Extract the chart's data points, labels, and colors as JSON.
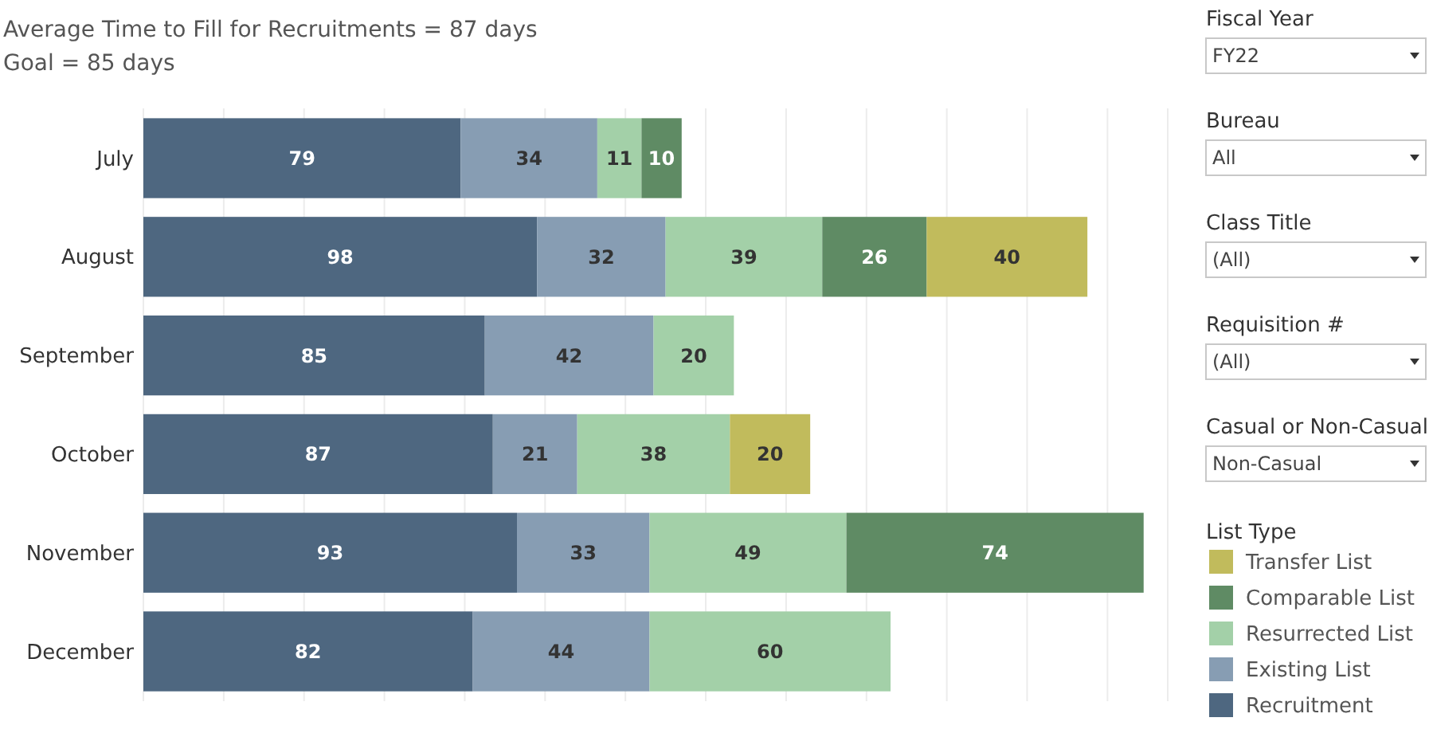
{
  "chart_data": {
    "type": "bar",
    "orientation": "horizontal",
    "stacked": true,
    "title": "Average Time to Fill for Recruitments = 87 days",
    "subtitle": "Goal = 85 days",
    "categories": [
      "July",
      "August",
      "September",
      "October",
      "November",
      "December"
    ],
    "series": [
      {
        "name": "Recruitment",
        "color": "#4e6780",
        "values": [
          79,
          98,
          85,
          87,
          93,
          82
        ]
      },
      {
        "name": "Existing List",
        "color": "#879db3",
        "values": [
          34,
          32,
          42,
          21,
          33,
          44
        ]
      },
      {
        "name": "Resurrected List",
        "color": "#a3d0a8",
        "values": [
          11,
          39,
          20,
          38,
          49,
          60
        ]
      },
      {
        "name": "Comparable List",
        "color": "#5f8b64",
        "values": [
          10,
          26,
          null,
          null,
          74,
          null
        ]
      },
      {
        "name": "Transfer List",
        "color": "#c1bb5c",
        "values": [
          null,
          40,
          null,
          20,
          null,
          null
        ]
      }
    ],
    "xlim": [
      0,
      255
    ],
    "xticks": [
      {
        "value": 0,
        "label": null
      },
      {
        "value": 20,
        "label": null
      },
      {
        "value": 40,
        "label": null
      },
      {
        "value": 60,
        "label": null
      },
      {
        "value": 80,
        "label": null
      },
      {
        "value": 100,
        "label": null
      },
      {
        "value": 120,
        "label": null
      },
      {
        "value": 140,
        "label": null
      },
      {
        "value": 160,
        "label": null
      },
      {
        "value": 180,
        "label": null
      },
      {
        "value": 200,
        "label": null
      },
      {
        "value": 220,
        "label": null
      },
      {
        "value": 240,
        "label": null
      }
    ],
    "tick_labels": "y",
    "grid": "x",
    "data_labels": true,
    "legend": "right",
    "legend_title": "List Type",
    "annotations": [
      "Fiscal Year",
      "FY22",
      "Bureau",
      "All",
      "Class Title",
      "(All)",
      "Requisition #",
      "(All)",
      "Casual or Non-Casual",
      "Non-Casual"
    ]
  }
}
